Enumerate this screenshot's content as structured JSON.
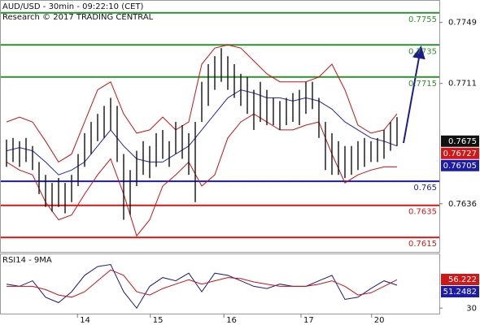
{
  "chart_data": [
    {
      "type": "ohlc",
      "title": "AUD/USD - 30min - 09:22:10 (CET)",
      "subtitle": "Research © 2017 TRADING CENTRAL",
      "color": "#111111",
      "x": [
        1,
        2,
        3,
        4,
        5,
        6,
        7,
        8,
        9,
        10,
        11,
        12,
        13,
        14,
        15,
        16,
        17,
        18,
        19,
        20,
        21,
        22,
        23,
        24,
        25,
        26,
        27,
        28,
        29,
        30,
        31,
        32,
        33,
        34,
        35,
        36,
        37,
        38,
        39,
        40,
        41,
        42,
        43,
        44,
        45,
        46,
        47,
        48,
        49,
        50,
        51,
        52,
        53,
        54,
        55,
        56,
        57,
        58,
        59,
        60,
        61
      ],
      "high": [
        0.7676,
        0.7677,
        0.7675,
        0.7677,
        0.7672,
        0.7662,
        0.7654,
        0.7649,
        0.7652,
        0.7649,
        0.7654,
        0.7667,
        0.768,
        0.7687,
        0.7692,
        0.7697,
        0.7702,
        0.7697,
        0.7667,
        0.7657,
        0.7669,
        0.7675,
        0.7672,
        0.768,
        0.7682,
        0.7675,
        0.7687,
        0.7685,
        0.768,
        0.7687,
        0.7712,
        0.7723,
        0.7728,
        0.7733,
        0.7728,
        0.7723,
        0.7717,
        0.7715,
        0.7707,
        0.7712,
        0.7707,
        0.7702,
        0.77,
        0.7702,
        0.7705,
        0.7707,
        0.7712,
        0.7712,
        0.7702,
        0.7687,
        0.768,
        0.7675,
        0.7672,
        0.7672,
        0.7675,
        0.7677,
        0.7675,
        0.7677,
        0.7682,
        0.7687,
        0.769
      ],
      "low": [
        0.7659,
        0.7662,
        0.7659,
        0.7662,
        0.7657,
        0.7642,
        0.7634,
        0.7631,
        0.7634,
        0.763,
        0.7637,
        0.7647,
        0.7659,
        0.7667,
        0.7675,
        0.7677,
        0.7682,
        0.7662,
        0.7626,
        0.7629,
        0.7647,
        0.7654,
        0.7652,
        0.7659,
        0.7664,
        0.7659,
        0.7667,
        0.7664,
        0.7654,
        0.7637,
        0.7687,
        0.7697,
        0.7707,
        0.7712,
        0.7707,
        0.7702,
        0.7697,
        0.7692,
        0.7682,
        0.7687,
        0.7685,
        0.7685,
        0.7682,
        0.7685,
        0.7687,
        0.7685,
        0.7692,
        0.7695,
        0.7677,
        0.7657,
        0.7654,
        0.7654,
        0.7652,
        0.7654,
        0.7657,
        0.7659,
        0.7662,
        0.7662,
        0.7664,
        0.7669,
        0.7672
      ],
      "overlays": [
        {
          "color": "#cc1111",
          "x": [
            1,
            3,
            5,
            7,
            9,
            11,
            13,
            15,
            17,
            19,
            21,
            23,
            25,
            27,
            29,
            31,
            33,
            35,
            37,
            39,
            41,
            43,
            45,
            47,
            49,
            51,
            53,
            55,
            57,
            59,
            61
          ],
          "values": [
            0.7687,
            0.769,
            0.7687,
            0.7675,
            0.7662,
            0.7667,
            0.7687,
            0.7707,
            0.7712,
            0.7692,
            0.768,
            0.7682,
            0.769,
            0.7682,
            0.7687,
            0.7723,
            0.7733,
            0.7735,
            0.7733,
            0.7725,
            0.7717,
            0.7712,
            0.7712,
            0.7712,
            0.7715,
            0.7723,
            0.7707,
            0.7685,
            0.768,
            0.7682,
            0.7692
          ]
        },
        {
          "color": "#cc1111",
          "x": [
            1,
            3,
            5,
            7,
            9,
            11,
            13,
            15,
            17,
            19,
            21,
            23,
            25,
            27,
            29,
            31,
            33,
            35,
            37,
            39,
            41,
            43,
            45,
            47,
            49,
            51,
            53,
            55,
            57,
            59,
            61
          ],
          "values": [
            0.7662,
            0.7657,
            0.7654,
            0.7637,
            0.7626,
            0.7629,
            0.7642,
            0.7654,
            0.7664,
            0.7642,
            0.7616,
            0.7626,
            0.7647,
            0.7654,
            0.7662,
            0.7647,
            0.7654,
            0.7677,
            0.7687,
            0.7692,
            0.7687,
            0.7682,
            0.7682,
            0.7685,
            0.7687,
            0.7667,
            0.7649,
            0.7654,
            0.7657,
            0.7659,
            0.7659
          ]
        },
        {
          "color": "#2222bb",
          "x": [
            1,
            3,
            5,
            7,
            9,
            11,
            13,
            15,
            17,
            19,
            21,
            23,
            25,
            27,
            29,
            31,
            33,
            35,
            37,
            39,
            41,
            43,
            45,
            47,
            49,
            51,
            53,
            55,
            57,
            59,
            61
          ],
          "values": [
            0.7669,
            0.7671,
            0.7669,
            0.7662,
            0.7654,
            0.7657,
            0.7662,
            0.7672,
            0.7682,
            0.7672,
            0.7664,
            0.7662,
            0.7662,
            0.7667,
            0.7672,
            0.7682,
            0.7692,
            0.7702,
            0.7707,
            0.7705,
            0.7702,
            0.7702,
            0.77,
            0.7702,
            0.77,
            0.7695,
            0.7687,
            0.7682,
            0.7677,
            0.7675,
            0.7672
          ]
        }
      ],
      "levels": [
        {
          "value": 0.7755,
          "color": "#2f8f2f"
        },
        {
          "value": 0.7735,
          "color": "#2f8f2f"
        },
        {
          "value": 0.7715,
          "color": "#2f8f2f"
        },
        {
          "value": 0.765,
          "color": "#1c1ca8"
        },
        {
          "value": 0.7635,
          "color": "#d01818"
        },
        {
          "value": 0.7615,
          "color": "#d01818"
        }
      ],
      "last_values": [
        {
          "value": 0.7675,
          "color": "#111111"
        },
        {
          "value": 0.76727,
          "color": "#d01818"
        },
        {
          "value": 0.76705,
          "color": "#1c1ca8"
        }
      ],
      "xlim": [
        0,
        67.5
      ],
      "ylim": [
        0.7606,
        0.7763
      ],
      "yticks": [
        0.7749,
        0.7711,
        0.7636
      ]
    },
    {
      "type": "line",
      "title": "RSI14 - 9MA",
      "x": [
        1,
        3,
        5,
        7,
        9,
        11,
        13,
        15,
        17,
        19,
        21,
        23,
        25,
        27,
        29,
        31,
        33,
        35,
        37,
        39,
        41,
        43,
        45,
        47,
        49,
        51,
        53,
        55,
        57,
        59,
        61
      ],
      "series": [
        {
          "color": "#1a1a80",
          "values": [
            52,
            50,
            55,
            40,
            35,
            45,
            60,
            68,
            70,
            45,
            30,
            50,
            58,
            55,
            62,
            45,
            62,
            60,
            55,
            50,
            48,
            52,
            50,
            50,
            55,
            60,
            38,
            40,
            48,
            55,
            51
          ]
        },
        {
          "color": "#cc1111",
          "values": [
            50,
            50,
            50,
            47,
            42,
            40,
            45,
            55,
            65,
            60,
            45,
            42,
            48,
            52,
            56,
            52,
            55,
            58,
            57,
            54,
            52,
            50,
            50,
            50,
            52,
            55,
            50,
            42,
            44,
            50,
            56
          ]
        }
      ],
      "last_values": [
        {
          "value": 56.222,
          "color": "#d01818"
        },
        {
          "value": 51.2482,
          "color": "#1c1ca8"
        }
      ],
      "xlim": [
        0,
        67.5
      ],
      "ylim": [
        25,
        80
      ],
      "yticks": [
        30
      ],
      "xticks": [
        {
          "value": 11.9,
          "label": "14"
        },
        {
          "value": 23.1,
          "label": "15"
        },
        {
          "value": 34.4,
          "label": "16"
        },
        {
          "value": 46.25,
          "label": "17"
        },
        {
          "value": 57.1,
          "label": "20"
        }
      ]
    }
  ]
}
